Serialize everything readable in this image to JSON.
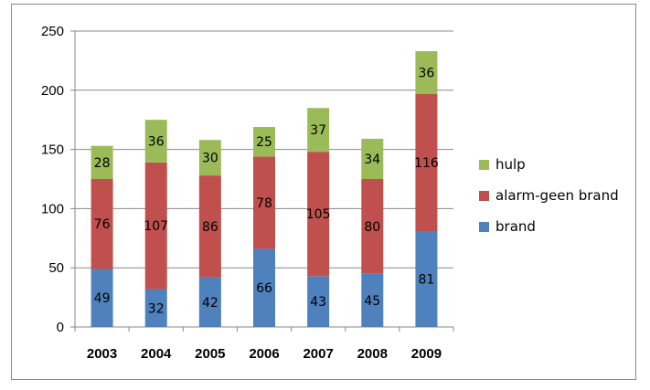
{
  "chart_data": {
    "type": "bar",
    "stacked": true,
    "categories": [
      "2003",
      "2004",
      "2005",
      "2006",
      "2007",
      "2008",
      "2009"
    ],
    "series": [
      {
        "name": "brand",
        "values": [
          49,
          32,
          42,
          66,
          43,
          45,
          81
        ],
        "color": "#4f81bd"
      },
      {
        "name": "alarm-geen brand",
        "values": [
          76,
          107,
          86,
          78,
          105,
          80,
          116
        ],
        "color": "#c0504d"
      },
      {
        "name": "hulp",
        "values": [
          28,
          36,
          30,
          25,
          37,
          34,
          36
        ],
        "color": "#9bbb59"
      }
    ],
    "title": "",
    "xlabel": "",
    "ylabel": "",
    "ylim": [
      0,
      250
    ],
    "yticks": [
      0,
      50,
      100,
      150,
      200,
      250
    ],
    "grid": true,
    "legend": "right",
    "legend_order": [
      "hulp",
      "alarm-geen brand",
      "brand"
    ]
  }
}
